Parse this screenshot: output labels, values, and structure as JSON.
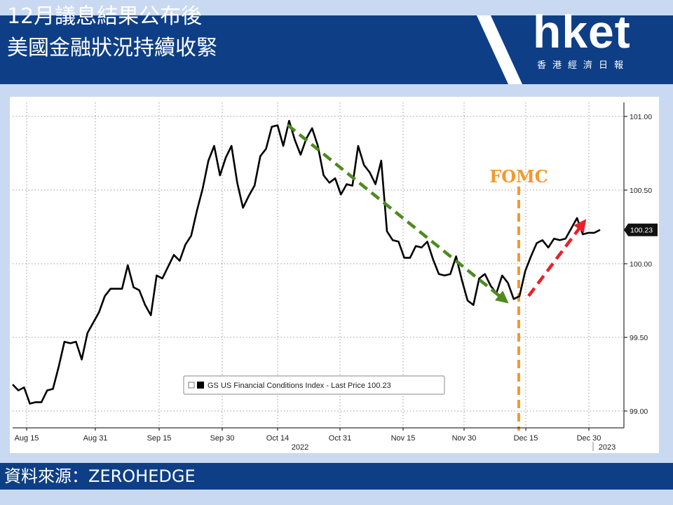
{
  "header": {
    "title_line1": "12月議息結果公布後",
    "title_line2": "美國金融狀況持續收緊",
    "logo": "hket",
    "logo_sub": "香港經濟日報"
  },
  "footer": {
    "source": "資料來源：ZEROHEDGE"
  },
  "colors": {
    "header_bg": "#0e3f86",
    "line": "#000000",
    "down_arrow": "#4e8a1e",
    "up_arrow": "#e8202a",
    "fomc": "#f2992e"
  },
  "chart_data": {
    "type": "line",
    "x_tick_labels": [
      "Aug 15",
      "Aug 31",
      "Sep 15",
      "Sep 30",
      "Oct 14",
      "Oct 31",
      "Nov 15",
      "Nov 30",
      "Dec 15",
      "Dec 30"
    ],
    "year_labels": [
      "2022",
      "2023"
    ],
    "y_ticks": [
      99.0,
      99.5,
      100.0,
      100.5,
      101.0
    ],
    "y_tick_labels": [
      "99.00",
      "99.50",
      "100.00",
      "100.50",
      "101.00"
    ],
    "ylim": [
      98.85,
      101.1
    ],
    "grid": true,
    "legend": "GS US Financial Conditions Index - Last Price 100.23",
    "last_price_label": "100.23",
    "annotation": "FOMC",
    "series": [
      {
        "values": [
          99.18,
          99.14,
          99.16,
          99.05,
          99.06,
          99.06,
          99.14,
          99.15,
          99.3,
          99.47,
          99.46,
          99.47,
          99.35,
          99.53,
          99.6,
          99.67,
          99.78,
          99.83,
          99.83,
          99.83,
          99.99,
          99.84,
          99.82,
          99.72,
          99.65,
          99.92,
          99.9,
          99.98,
          100.06,
          100.02,
          100.13,
          100.19,
          100.36,
          100.51,
          100.7,
          100.8,
          100.6,
          100.72,
          100.8,
          100.55,
          100.38,
          100.46,
          100.53,
          100.73,
          100.78,
          100.93,
          100.94,
          100.8,
          100.97,
          100.84,
          100.74,
          100.85,
          100.92,
          100.8,
          100.6,
          100.55,
          100.58,
          100.47,
          100.54,
          100.53,
          100.8,
          100.67,
          100.62,
          100.54,
          100.7,
          100.22,
          100.16,
          100.15,
          100.04,
          100.04,
          100.12,
          100.11,
          100.15,
          100.03,
          99.93,
          99.92,
          99.93,
          100.05,
          99.89,
          99.75,
          99.72,
          99.9,
          99.93,
          99.85,
          99.8,
          99.92,
          99.87,
          99.76,
          99.78,
          99.95,
          100.05,
          100.14,
          100.16,
          100.11,
          100.17,
          100.16,
          100.17,
          100.24,
          100.31,
          100.2,
          100.21,
          100.21,
          100.23
        ]
      }
    ]
  }
}
